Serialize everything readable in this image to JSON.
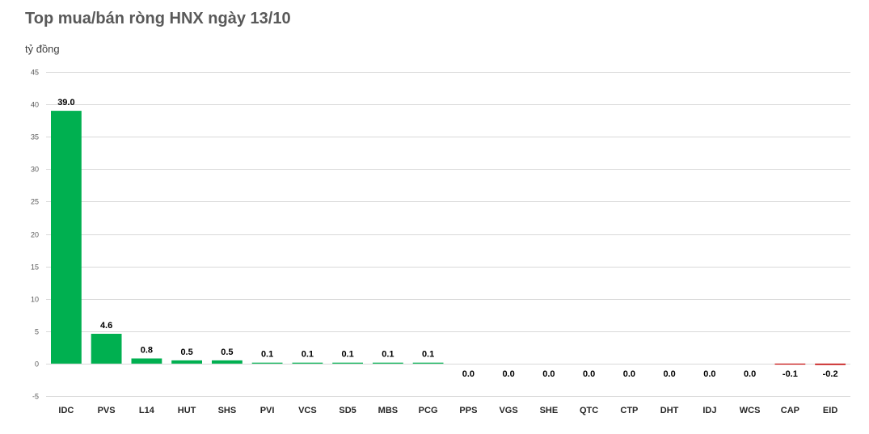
{
  "title": "Top mua/bán ròng HNX ngày 13/10",
  "unit_label": "tỷ đồng",
  "colors": {
    "positive": "#00B050",
    "negative": "#C00000",
    "grid": "#D9D9D9"
  },
  "chart_data": {
    "type": "bar",
    "title": "Top mua/bán ròng HNX ngày 13/10",
    "ylabel": "tỷ đồng",
    "xlabel": "",
    "ylim": [
      -5,
      45
    ],
    "yticks": [
      -5,
      0,
      5,
      10,
      15,
      20,
      25,
      30,
      35,
      40,
      45
    ],
    "grid": true,
    "categories": [
      "IDC",
      "PVS",
      "L14",
      "HUT",
      "SHS",
      "PVI",
      "VCS",
      "SD5",
      "MBS",
      "PCG",
      "PPS",
      "VGS",
      "SHE",
      "QTC",
      "CTP",
      "DHT",
      "IDJ",
      "WCS",
      "CAP",
      "EID"
    ],
    "values": [
      39.0,
      4.6,
      0.8,
      0.5,
      0.5,
      0.1,
      0.1,
      0.1,
      0.1,
      0.1,
      0.0,
      0.0,
      0.0,
      0.0,
      0.0,
      0.0,
      0.0,
      0.0,
      -0.1,
      -0.2
    ],
    "data_labels": [
      "39.0",
      "4.6",
      "0.8",
      "0.5",
      "0.5",
      "0.1",
      "0.1",
      "0.1",
      "0.1",
      "0.1",
      "0.0",
      "0.0",
      "0.0",
      "0.0",
      "0.0",
      "0.0",
      "0.0",
      "0.0",
      "-0.1",
      "-0.2"
    ]
  }
}
